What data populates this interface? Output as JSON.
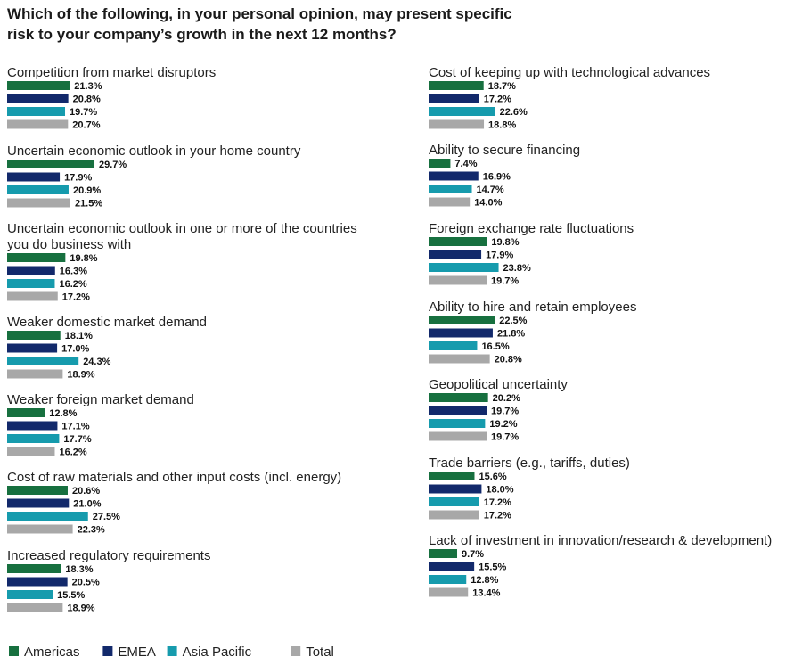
{
  "chart_data": {
    "type": "bar",
    "orientation": "horizontal",
    "title": "Which of the following, in your personal opinion, may present specific\nrisk to your company’s growth in the next 12 months?",
    "unit": "%",
    "series": [
      {
        "name": "Americas",
        "color": "#17703f"
      },
      {
        "name": "EMEA",
        "color": "#12296b"
      },
      {
        "name": "Asia Pacific",
        "color": "#169bad"
      },
      {
        "name": "Total",
        "color": "#a8a8a8"
      }
    ],
    "categories": [
      {
        "label": [
          "Competition from market disruptors"
        ],
        "values": [
          21.3,
          20.8,
          19.7,
          20.7
        ]
      },
      {
        "label": [
          "Uncertain economic outlook in your home country"
        ],
        "values": [
          29.7,
          17.9,
          20.9,
          21.5
        ]
      },
      {
        "label": [
          "Uncertain economic outlook in one or more of the countries",
          "you do business with"
        ],
        "values": [
          19.8,
          16.3,
          16.2,
          17.2
        ]
      },
      {
        "label": [
          "Weaker domestic market demand"
        ],
        "values": [
          18.1,
          17.0,
          24.3,
          18.9
        ]
      },
      {
        "label": [
          "Weaker foreign market demand"
        ],
        "values": [
          12.8,
          17.1,
          17.7,
          16.2
        ]
      },
      {
        "label": [
          "Cost of raw materials and other input costs (incl. energy)"
        ],
        "values": [
          20.6,
          21.0,
          27.5,
          22.3
        ]
      },
      {
        "label": [
          "Increased regulatory requirements"
        ],
        "values": [
          18.3,
          20.5,
          15.5,
          18.9
        ]
      },
      {
        "label": [
          "Cost of keeping up with technological advances"
        ],
        "values": [
          18.7,
          17.2,
          22.6,
          18.8
        ]
      },
      {
        "label": [
          "Ability to secure financing"
        ],
        "values": [
          7.4,
          16.9,
          14.7,
          14.0
        ]
      },
      {
        "label": [
          "Foreign exchange rate fluctuations"
        ],
        "values": [
          19.8,
          17.9,
          23.8,
          19.7
        ]
      },
      {
        "label": [
          "Ability to hire and retain employees"
        ],
        "values": [
          22.5,
          21.8,
          16.5,
          20.8
        ]
      },
      {
        "label": [
          "Geopolitical uncertainty"
        ],
        "values": [
          20.2,
          19.7,
          19.2,
          19.7
        ]
      },
      {
        "label": [
          "Trade barriers (e.g., tariffs, duties)"
        ],
        "values": [
          15.6,
          18.0,
          17.2,
          17.2
        ]
      },
      {
        "label": [
          "Lack of investment in innovation/research & development)"
        ],
        "values": [
          9.7,
          15.5,
          12.8,
          13.4
        ]
      }
    ],
    "value_labels": true,
    "legend_position": "bottom-left",
    "grid": false
  }
}
